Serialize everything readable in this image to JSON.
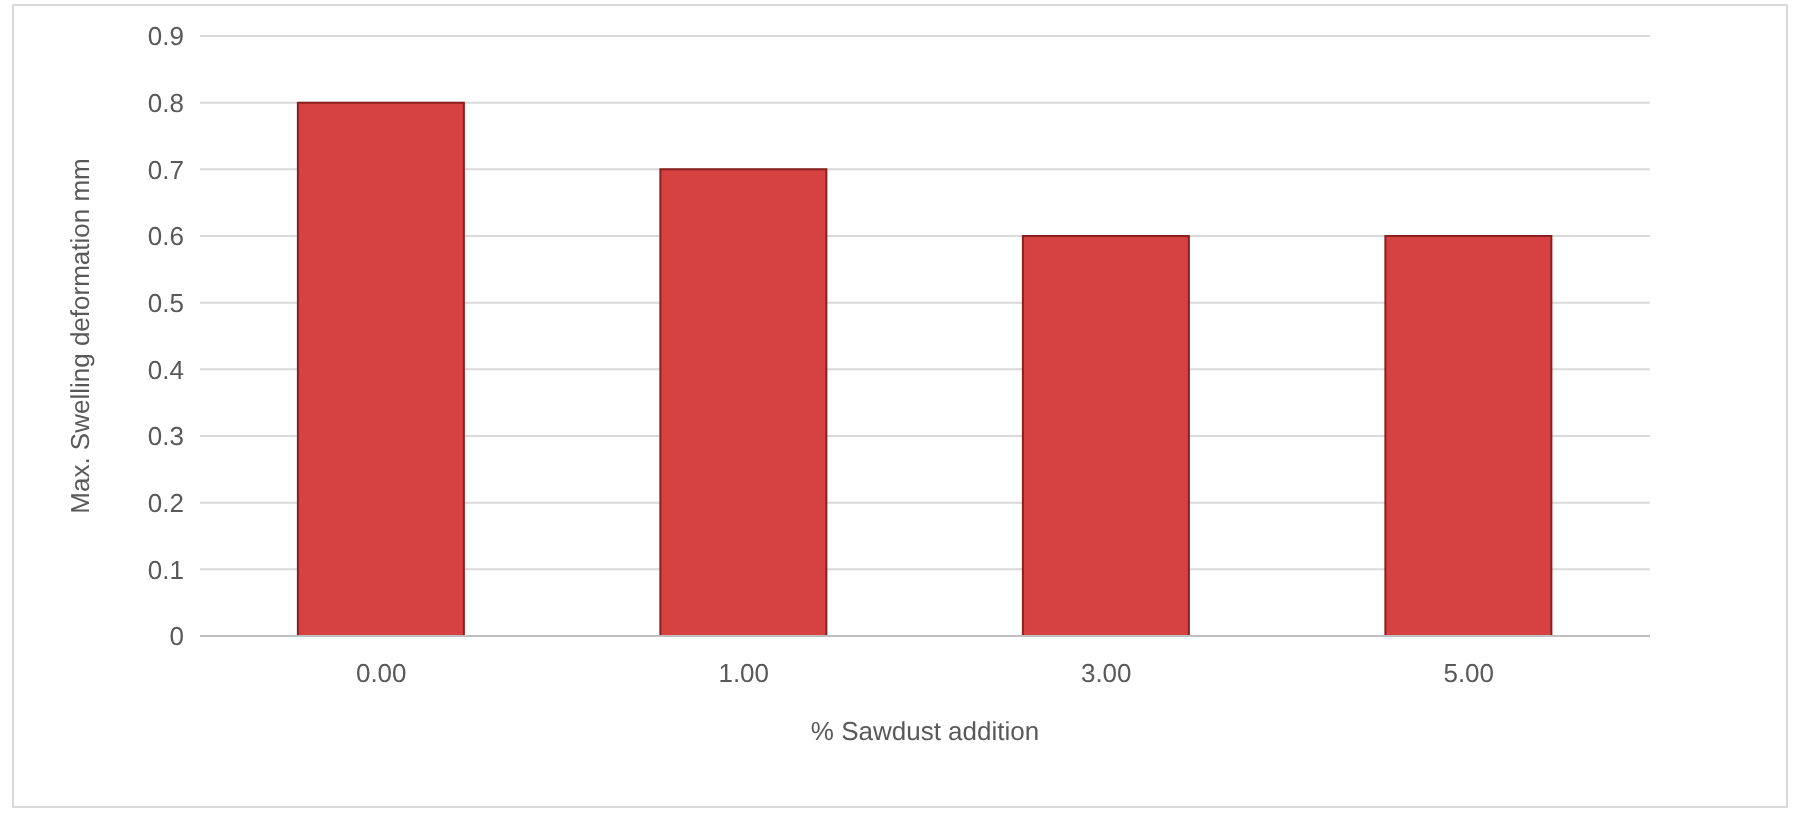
{
  "chart_data": {
    "type": "bar",
    "xlabel": "% Sawdust addition",
    "ylabel": "Max. Swelling deformation mm",
    "categories": [
      "0.00",
      "1.00",
      "3.00",
      "5.00"
    ],
    "values": [
      0.8,
      0.7,
      0.6,
      0.6
    ],
    "color": "#d64242",
    "ylim": [
      0,
      0.9
    ],
    "yticks": [
      0,
      0.1,
      0.2,
      0.3,
      0.4,
      0.5,
      0.6,
      0.7,
      0.8,
      0.9
    ],
    "grid": "y",
    "legend": false
  }
}
